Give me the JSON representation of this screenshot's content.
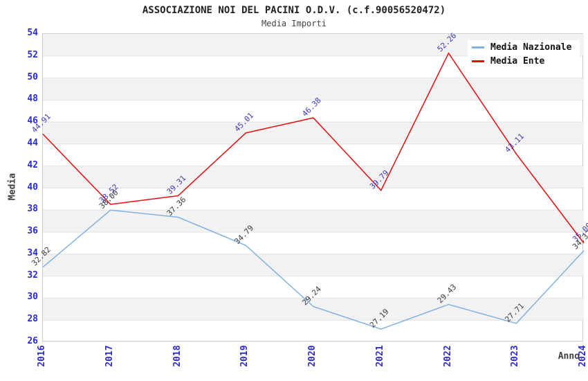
{
  "title": "ASSOCIAZIONE NOI DEL PACINI O.D.V. (c.f.90056520472)",
  "subtitle": "Media Importi",
  "colors": {
    "background": "#ffffff",
    "band": "#f2f2f2",
    "gridline": "#e2e2e2",
    "plot_border": "#cccccc",
    "tick_label": "#2b2bd5",
    "axis_title": "#3c3c3c"
  },
  "chart_data": {
    "type": "line",
    "title": "ASSOCIAZIONE NOI DEL PACINI O.D.V. (c.f.90056520472)",
    "subtitle": "Media Importi",
    "xlabel": "Anno",
    "ylabel": "Media",
    "categories": [
      "2016",
      "2017",
      "2018",
      "2019",
      "2020",
      "2021",
      "2022",
      "2023",
      "2024"
    ],
    "series": [
      {
        "name": "Media Nazionale",
        "color": "#7fb1e2",
        "label_color": "#3b3b3b",
        "values": [
          32.82,
          38.0,
          37.36,
          34.79,
          29.24,
          27.19,
          29.43,
          27.71,
          34.32
        ]
      },
      {
        "name": "Media Ente",
        "color": "#e60b0b",
        "label_color": "#3a3abf",
        "values": [
          44.91,
          38.52,
          39.31,
          45.01,
          46.38,
          39.79,
          52.26,
          43.11,
          35.0
        ]
      }
    ],
    "ylim": [
      26,
      54
    ],
    "ytick_step": 2,
    "grid": "horizontal-bands",
    "legend_position": "top-right"
  }
}
